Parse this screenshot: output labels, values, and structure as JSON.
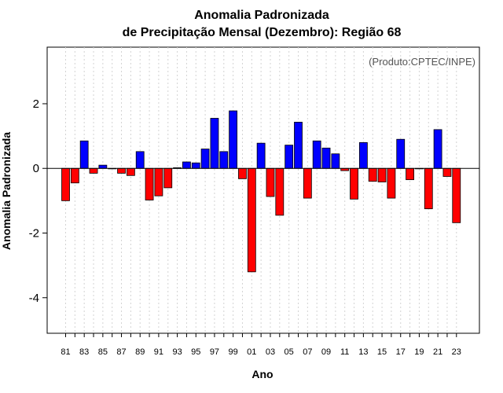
{
  "chart_data": {
    "type": "bar",
    "title": "Anomalia Padronizada",
    "subtitle": "de Precipitação Mensal (Dezembro): Região 68",
    "xlabel": "Ano",
    "ylabel": "Anomalia Padronizada",
    "credit": "(Produto:CPTEC/INPE)",
    "ylim": [
      -5.1,
      3.75
    ],
    "yticks": [
      -4,
      -2,
      0,
      2
    ],
    "ytick_labels": [
      "-4",
      "-2",
      "0",
      "2"
    ],
    "xtick_labels": [
      "81",
      "83",
      "85",
      "87",
      "89",
      "91",
      "93",
      "95",
      "97",
      "99",
      "01",
      "03",
      "05",
      "07",
      "09",
      "11",
      "13",
      "15",
      "17",
      "19",
      "21",
      "23"
    ],
    "grid": "vertical dotted",
    "categories": [
      "1981",
      "1982",
      "1983",
      "1984",
      "1985",
      "1986",
      "1987",
      "1988",
      "1989",
      "1990",
      "1991",
      "1992",
      "1993",
      "1994",
      "1995",
      "1996",
      "1997",
      "1998",
      "1999",
      "2000",
      "2001",
      "2002",
      "2003",
      "2004",
      "2005",
      "2006",
      "2007",
      "2008",
      "2009",
      "2010",
      "2011",
      "2012",
      "2013",
      "2014",
      "2015",
      "2016",
      "2017",
      "2018",
      "2019",
      "2020",
      "2021",
      "2022",
      "2023"
    ],
    "values": [
      -1.0,
      -0.45,
      0.85,
      -0.15,
      0.1,
      0.0,
      -0.15,
      -0.22,
      0.52,
      -0.98,
      -0.85,
      -0.6,
      0.02,
      0.2,
      0.17,
      0.6,
      1.55,
      0.52,
      1.78,
      -0.32,
      -3.2,
      0.78,
      -0.87,
      -1.45,
      0.72,
      1.43,
      -0.92,
      0.85,
      0.63,
      0.45,
      -0.07,
      -0.95,
      0.8,
      -0.4,
      -0.42,
      -0.92,
      0.9,
      -0.35,
      0.0,
      -1.25,
      1.2,
      -0.25,
      -1.68
    ],
    "colors": {
      "positive": "#0000ff",
      "negative": "#ff0000",
      "zero_line": "#000000",
      "grid": "#d3d3d3"
    }
  }
}
